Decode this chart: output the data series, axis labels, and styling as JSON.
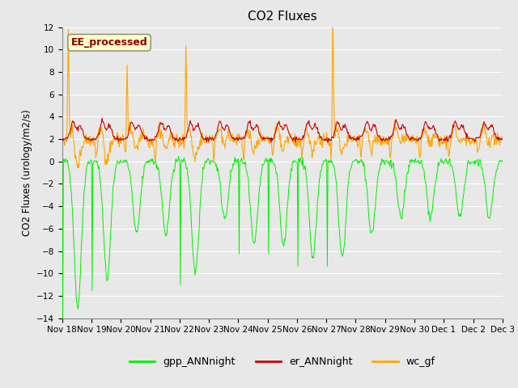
{
  "title": "CO2 Fluxes",
  "ylabel": "CO2 Fluxes (urology/m2/s)",
  "ylim": [
    -14,
    12
  ],
  "yticks": [
    -14,
    -12,
    -10,
    -8,
    -6,
    -4,
    -2,
    0,
    2,
    4,
    6,
    8,
    10,
    12
  ],
  "background_color": "#e8e8e8",
  "plot_bg_color": "#e8e8e8",
  "grid_color": "#ffffff",
  "line_colors": {
    "gpp": "#00ee00",
    "er": "#cc0000",
    "wc": "#ffa500"
  },
  "legend_labels": [
    "gpp_ANNnight",
    "er_ANNnight",
    "wc_gf"
  ],
  "watermark_text": "EE_processed",
  "watermark_color": "#8b0000",
  "watermark_bg": "#ffffcc",
  "title_fontsize": 11,
  "tick_fontsize": 7.5,
  "legend_fontsize": 9
}
